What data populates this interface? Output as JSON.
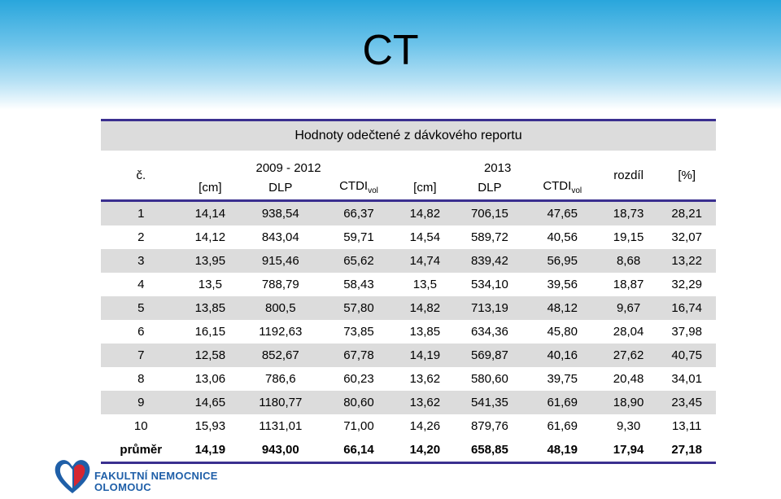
{
  "slide": {
    "title": "CT"
  },
  "table": {
    "caption": "Hodnoty odečtené z dávkového reportu",
    "periods": [
      "2009 - 2012",
      "2013"
    ],
    "row_head": "č.",
    "diff_head": "rozdíl",
    "pct_head": "[%]",
    "units": {
      "cm": "[cm]",
      "dlp": "DLP",
      "ctdi": "CTDI",
      "ctdi_sub": "vol"
    },
    "rows": [
      [
        "1",
        "14,14",
        "938,54",
        "66,37",
        "14,82",
        "706,15",
        "47,65",
        "18,73",
        "28,21"
      ],
      [
        "2",
        "14,12",
        "843,04",
        "59,71",
        "14,54",
        "589,72",
        "40,56",
        "19,15",
        "32,07"
      ],
      [
        "3",
        "13,95",
        "915,46",
        "65,62",
        "14,74",
        "839,42",
        "56,95",
        "8,68",
        "13,22"
      ],
      [
        "4",
        "13,5",
        "788,79",
        "58,43",
        "13,5",
        "534,10",
        "39,56",
        "18,87",
        "32,29"
      ],
      [
        "5",
        "13,85",
        "800,5",
        "57,80",
        "14,82",
        "713,19",
        "48,12",
        "9,67",
        "16,74"
      ],
      [
        "6",
        "16,15",
        "1192,63",
        "73,85",
        "13,85",
        "634,36",
        "45,80",
        "28,04",
        "37,98"
      ],
      [
        "7",
        "12,58",
        "852,67",
        "67,78",
        "14,19",
        "569,87",
        "40,16",
        "27,62",
        "40,75"
      ],
      [
        "8",
        "13,06",
        "786,6",
        "60,23",
        "13,62",
        "580,60",
        "39,75",
        "20,48",
        "34,01"
      ],
      [
        "9",
        "14,65",
        "1180,77",
        "80,60",
        "13,62",
        "541,35",
        "61,69",
        "18,90",
        "23,45"
      ],
      [
        "10",
        "15,93",
        "1131,01",
        "71,00",
        "14,26",
        "879,76",
        "61,69",
        "9,30",
        "13,11"
      ]
    ],
    "average": [
      "průměr",
      "14,19",
      "943,00",
      "66,14",
      "14,20",
      "658,85",
      "48,19",
      "17,94",
      "27,18"
    ]
  },
  "logo": {
    "line1": "FAKULTNÍ NEMOCNICE",
    "line2": "OLOMOUC"
  },
  "colors": {
    "rule": "#3a2f8f",
    "band": "#dcdcdc",
    "logo_blue": "#1f5fa8",
    "logo_red": "#d62631"
  }
}
